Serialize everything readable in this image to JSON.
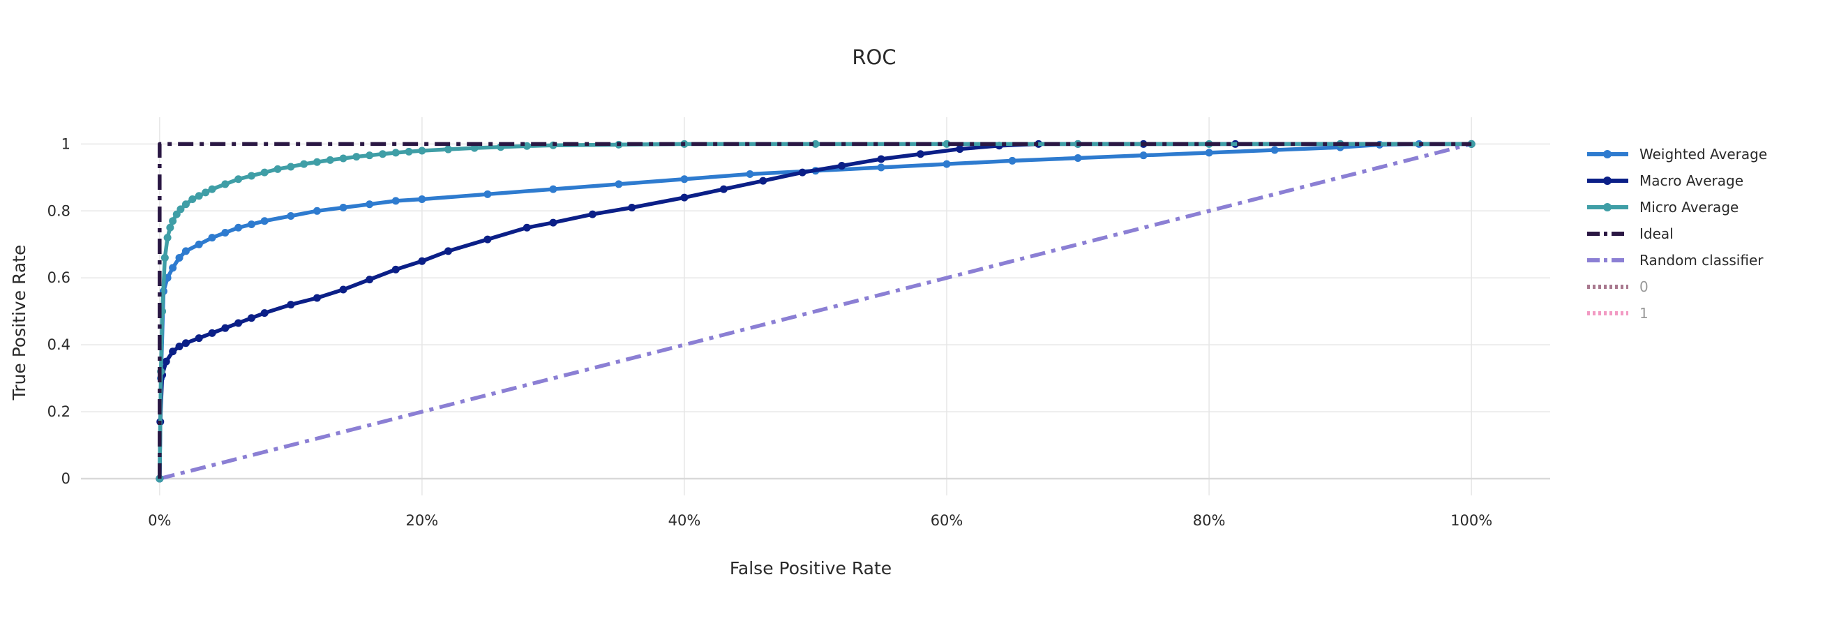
{
  "chart_data": {
    "type": "line",
    "title": "ROC",
    "xlabel": "False Positive Rate",
    "ylabel": "True Positive Rate",
    "xlim": [
      -0.06,
      1.06
    ],
    "ylim": [
      -0.05,
      1.08
    ],
    "x_ticks": [
      0,
      0.2,
      0.4,
      0.6,
      0.8,
      1.0
    ],
    "x_tick_labels": [
      "0%",
      "20%",
      "40%",
      "60%",
      "80%",
      "100%"
    ],
    "y_ticks": [
      0,
      0.2,
      0.4,
      0.6,
      0.8,
      1
    ],
    "y_tick_labels": [
      "0",
      "0.2",
      "0.4",
      "0.6",
      "0.8",
      "1"
    ],
    "grid": true,
    "legend_position": "right",
    "series": [
      {
        "name": "Weighted Average",
        "color": "#2e7bcf",
        "style": "solid-markers",
        "x": [
          0,
          0.001,
          0.003,
          0.006,
          0.01,
          0.015,
          0.02,
          0.03,
          0.04,
          0.05,
          0.06,
          0.07,
          0.08,
          0.1,
          0.12,
          0.14,
          0.16,
          0.18,
          0.2,
          0.25,
          0.3,
          0.35,
          0.4,
          0.45,
          0.5,
          0.55,
          0.6,
          0.65,
          0.7,
          0.75,
          0.8,
          0.85,
          0.9,
          0.93,
          0.96,
          1.0
        ],
        "y": [
          0,
          0.3,
          0.56,
          0.6,
          0.63,
          0.66,
          0.68,
          0.7,
          0.72,
          0.735,
          0.75,
          0.76,
          0.77,
          0.785,
          0.8,
          0.81,
          0.82,
          0.83,
          0.835,
          0.85,
          0.865,
          0.88,
          0.895,
          0.91,
          0.92,
          0.93,
          0.94,
          0.95,
          0.958,
          0.966,
          0.974,
          0.982,
          0.99,
          0.998,
          1,
          1
        ]
      },
      {
        "name": "Macro Average",
        "color": "#0b1f87",
        "style": "solid-markers",
        "x": [
          0,
          0.0005,
          0.002,
          0.005,
          0.01,
          0.015,
          0.02,
          0.03,
          0.04,
          0.05,
          0.06,
          0.07,
          0.08,
          0.1,
          0.12,
          0.14,
          0.16,
          0.18,
          0.2,
          0.22,
          0.25,
          0.28,
          0.3,
          0.33,
          0.36,
          0.4,
          0.43,
          0.46,
          0.49,
          0.52,
          0.55,
          0.58,
          0.61,
          0.64,
          0.67,
          0.7,
          0.75,
          0.82,
          0.9,
          1.0
        ],
        "y": [
          0,
          0.17,
          0.31,
          0.35,
          0.38,
          0.395,
          0.405,
          0.42,
          0.435,
          0.45,
          0.465,
          0.48,
          0.495,
          0.52,
          0.54,
          0.565,
          0.595,
          0.625,
          0.65,
          0.68,
          0.715,
          0.75,
          0.765,
          0.79,
          0.81,
          0.84,
          0.865,
          0.89,
          0.915,
          0.935,
          0.955,
          0.97,
          0.985,
          0.995,
          1,
          1,
          1,
          1,
          1,
          1
        ]
      },
      {
        "name": "Micro Average",
        "color": "#3f9ea6",
        "style": "solid-markers",
        "x": [
          0,
          0.001,
          0.002,
          0.004,
          0.006,
          0.008,
          0.01,
          0.013,
          0.016,
          0.02,
          0.025,
          0.03,
          0.035,
          0.04,
          0.05,
          0.06,
          0.07,
          0.08,
          0.09,
          0.1,
          0.11,
          0.12,
          0.13,
          0.14,
          0.15,
          0.16,
          0.17,
          0.18,
          0.19,
          0.2,
          0.22,
          0.24,
          0.26,
          0.28,
          0.3,
          0.35,
          0.4,
          0.5,
          0.6,
          0.7,
          0.8,
          0.9,
          1.0
        ],
        "y": [
          0,
          0.32,
          0.5,
          0.66,
          0.72,
          0.75,
          0.77,
          0.79,
          0.805,
          0.82,
          0.835,
          0.845,
          0.855,
          0.865,
          0.88,
          0.895,
          0.905,
          0.915,
          0.925,
          0.932,
          0.94,
          0.946,
          0.952,
          0.957,
          0.962,
          0.966,
          0.97,
          0.974,
          0.977,
          0.98,
          0.984,
          0.988,
          0.991,
          0.994,
          0.996,
          0.998,
          1,
          1,
          1,
          1,
          1,
          1,
          1
        ]
      },
      {
        "name": "Ideal",
        "color": "#2a1743",
        "style": "dashdot",
        "x": [
          0,
          0,
          1
        ],
        "y": [
          0,
          1,
          1
        ]
      },
      {
        "name": "Random classifier",
        "color": "#8b7fd4",
        "style": "dashdot",
        "x": [
          0,
          1
        ],
        "y": [
          0,
          1
        ]
      },
      {
        "name": "0",
        "color": "#a8788e",
        "style": "dotted",
        "visible": "legendonly",
        "x": [],
        "y": []
      },
      {
        "name": "1",
        "color": "#f29ac3",
        "style": "dotted",
        "visible": "legendonly",
        "x": [],
        "y": []
      }
    ]
  }
}
